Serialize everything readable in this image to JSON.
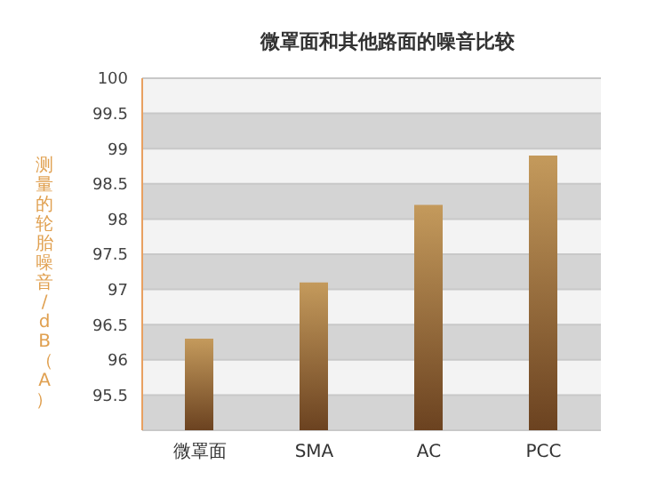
{
  "chart_data": {
    "type": "bar",
    "title": "微罩面和其他路面的噪音比较",
    "ylabel": "测量的轮胎噪音/dB（A）",
    "categories": [
      "微罩面",
      "SMA",
      "AC",
      "PCC"
    ],
    "values": [
      96.3,
      97.1,
      98.2,
      98.9
    ],
    "color": "#6b4220",
    "ylim": [
      95,
      100
    ],
    "yticks": [
      95.5,
      96,
      96.5,
      97,
      97.5,
      98,
      98.5,
      99,
      99.5,
      100
    ],
    "grid": "y"
  }
}
